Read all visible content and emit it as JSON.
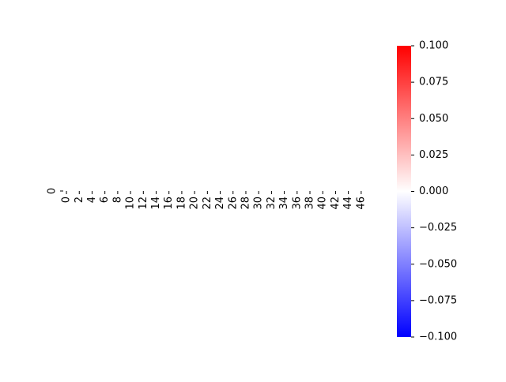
{
  "chart_data": {
    "type": "heatmap",
    "title": "",
    "xlabel": "",
    "ylabel": "",
    "rows": 1,
    "columns": 48,
    "y_tick_labels": [
      "0"
    ],
    "x_tick_labels": [
      "0",
      "2",
      "4",
      "6",
      "8",
      "10",
      "12",
      "14",
      "16",
      "18",
      "20",
      "22",
      "24",
      "26",
      "28",
      "30",
      "32",
      "34",
      "36",
      "38",
      "40",
      "42",
      "44",
      "46"
    ],
    "values": [
      [
        0,
        0,
        0,
        0,
        0,
        0,
        0,
        0,
        0,
        0,
        0,
        0,
        0,
        0,
        0,
        0,
        0,
        0,
        0,
        0,
        0,
        0,
        0,
        0,
        0,
        0,
        0,
        0,
        0,
        0,
        0,
        0,
        0,
        0,
        0,
        0,
        0,
        0,
        0,
        0,
        0,
        0,
        0,
        0,
        0,
        0,
        0,
        0
      ]
    ],
    "colormap": {
      "name": "bwr",
      "colors": [
        "#0000ff",
        "#ffffff",
        "#ff0000"
      ],
      "vmin": -0.1,
      "vmax": 0.1
    },
    "colorbar": {
      "tick_values": [
        0.1,
        0.075,
        0.05,
        0.025,
        0,
        -0.025,
        -0.05,
        -0.075,
        -0.1
      ],
      "tick_labels": [
        "0.100",
        "0.075",
        "0.050",
        "0.025",
        "0.000",
        "−0.025",
        "−0.050",
        "−0.075",
        "−0.100"
      ]
    }
  }
}
